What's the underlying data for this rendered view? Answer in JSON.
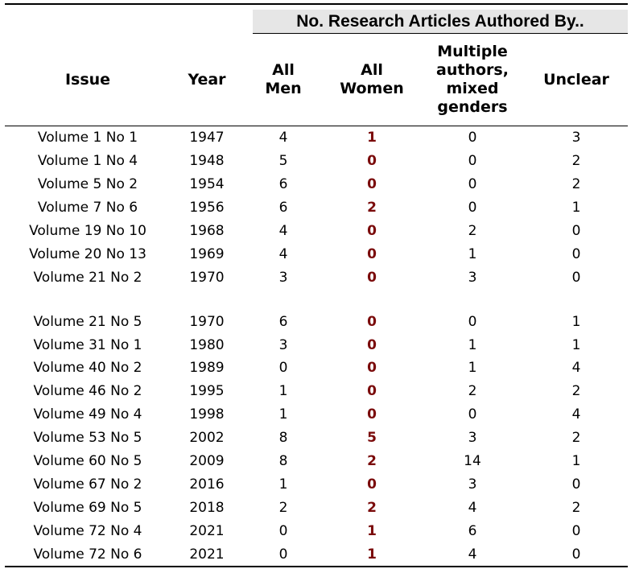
{
  "group_header": "No. Research Articles Authored By..",
  "columns": {
    "issue": "Issue",
    "year": "Year",
    "men": [
      "All",
      "Men"
    ],
    "women": [
      "All",
      "Women"
    ],
    "mixed": [
      "Multiple",
      "authors,",
      "mixed",
      "genders"
    ],
    "unclear": "Unclear"
  },
  "rows": [
    {
      "issue": "Volume 1 No 1",
      "year": "1947",
      "men": "4",
      "women": "1",
      "mixed": "0",
      "unclear": "3"
    },
    {
      "issue": "Volume 1 No 4",
      "year": "1948",
      "men": "5",
      "women": "0",
      "mixed": "0",
      "unclear": "2"
    },
    {
      "issue": "Volume 5 No 2",
      "year": "1954",
      "men": "6",
      "women": "0",
      "mixed": "0",
      "unclear": "2"
    },
    {
      "issue": "Volume 7 No 6",
      "year": "1956",
      "men": "6",
      "women": "2",
      "mixed": "0",
      "unclear": "1"
    },
    {
      "issue": "Volume 19 No 10",
      "year": "1968",
      "men": "4",
      "women": "0",
      "mixed": "2",
      "unclear": "0"
    },
    {
      "issue": "Volume 20 No 13",
      "year": "1969",
      "men": "4",
      "women": "0",
      "mixed": "1",
      "unclear": "0"
    },
    {
      "issue": "Volume 21 No 2",
      "year": "1970",
      "men": "3",
      "women": "0",
      "mixed": "3",
      "unclear": "0"
    },
    {
      "spacer": true
    },
    {
      "issue": "Volume 21 No 5",
      "year": "1970",
      "men": "6",
      "women": "0",
      "mixed": "0",
      "unclear": "1"
    },
    {
      "issue": "Volume 31 No 1",
      "year": "1980",
      "men": "3",
      "women": "0",
      "mixed": "1",
      "unclear": "1"
    },
    {
      "issue": "Volume 40 No 2",
      "year": "1989",
      "men": "0",
      "women": "0",
      "mixed": "1",
      "unclear": "4"
    },
    {
      "issue": "Volume 46 No 2",
      "year": "1995",
      "men": "1",
      "women": "0",
      "mixed": "2",
      "unclear": "2"
    },
    {
      "issue": "Volume 49 No 4",
      "year": "1998",
      "men": "1",
      "women": "0",
      "mixed": "0",
      "unclear": "4"
    },
    {
      "issue": "Volume 53 No 5",
      "year": "2002",
      "men": "8",
      "women": "5",
      "mixed": "3",
      "unclear": "2"
    },
    {
      "issue": "Volume 60 No 5",
      "year": "2009",
      "men": "8",
      "women": "2",
      "mixed": "14",
      "unclear": "1"
    },
    {
      "issue": "Volume 67 No 2",
      "year": "2016",
      "men": "1",
      "women": "0",
      "mixed": "3",
      "unclear": "0"
    },
    {
      "issue": "Volume 69 No 5",
      "year": "2018",
      "men": "2",
      "women": "2",
      "mixed": "4",
      "unclear": "2"
    },
    {
      "issue": "Volume 72 No 4",
      "year": "2021",
      "men": "0",
      "women": "1",
      "mixed": "6",
      "unclear": "0"
    },
    {
      "issue": "Volume 72 No 6",
      "year": "2021",
      "men": "0",
      "women": "1",
      "mixed": "4",
      "unclear": "0"
    }
  ],
  "colors": {
    "women_highlight": "#7a0a0a",
    "band": "#e6e6e6"
  }
}
